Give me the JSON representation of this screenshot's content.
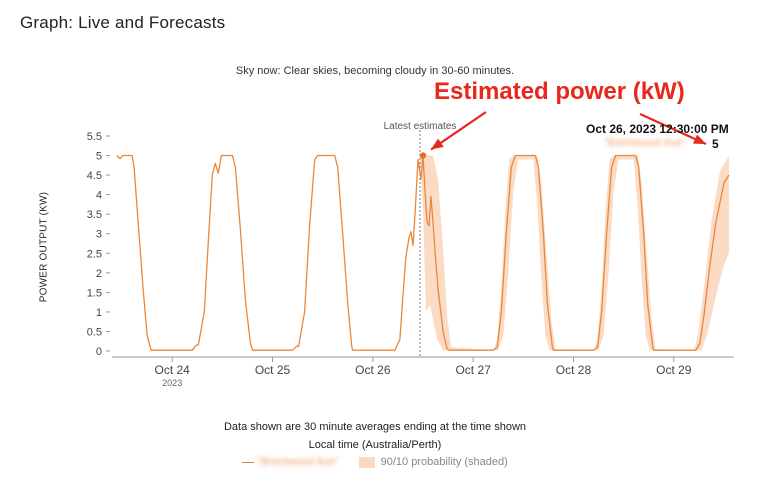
{
  "page_title": "Graph: Live and Forecasts",
  "sky_now": "Sky now: Clear skies, becoming cloudy in 30-60 minutes.",
  "annotation": {
    "label": "Estimated power (kW)",
    "color": "#e8271d"
  },
  "tooltip": {
    "date": "Oct 26, 2023 12:30:00 PM",
    "series": "\"Brentwood Ave\"",
    "value": "5"
  },
  "footnote": "Data shown are 30 minute averages ending at the time shown",
  "legend": {
    "series": "\"Brentwood Ave\"",
    "band": "90/10 probability (shaded)"
  },
  "colors": {
    "line": "#e8883c",
    "band": "#fbd9c1",
    "axis": "#999999",
    "marker": "#e8702a"
  },
  "chart_data": {
    "type": "line",
    "title": "",
    "ylabel": "POWER OUTPUT (KW)",
    "xlabel": "Local time (Australia/Perth)",
    "ylim": [
      0,
      5.5
    ],
    "yticks": [
      "0",
      "0.5",
      "1",
      "1.5",
      "2",
      "2.5",
      "3",
      "3.5",
      "4",
      "4.5",
      "5",
      "5.5"
    ],
    "xlim": [
      23.4,
      29.6
    ],
    "xticks": [
      {
        "x": 24,
        "label": "Oct 24",
        "sub": "2023"
      },
      {
        "x": 25,
        "label": "Oct 25",
        "sub": ""
      },
      {
        "x": 26,
        "label": "Oct 26",
        "sub": ""
      },
      {
        "x": 27,
        "label": "Oct 27",
        "sub": ""
      },
      {
        "x": 28,
        "label": "Oct 28",
        "sub": ""
      },
      {
        "x": 29,
        "label": "Oct 29",
        "sub": ""
      }
    ],
    "latest_marker": {
      "x": 26.47,
      "label": "Latest estimates"
    },
    "highlight_point": {
      "x": 26.5,
      "y": 5.0
    },
    "grid": false,
    "legend_position": "bottom",
    "series": [
      {
        "kind": "line",
        "points": [
          [
            23.45,
            5.0
          ],
          [
            23.48,
            4.92
          ],
          [
            23.51,
            5.0
          ],
          [
            23.6,
            5.0
          ],
          [
            23.62,
            4.7
          ],
          [
            23.66,
            3.3
          ],
          [
            23.71,
            1.6
          ],
          [
            23.75,
            0.4
          ],
          [
            23.79,
            0.02
          ],
          [
            24.2,
            0.02
          ],
          [
            24.24,
            0.15
          ],
          [
            24.26,
            0.15
          ],
          [
            24.32,
            1.0
          ],
          [
            24.36,
            2.8
          ],
          [
            24.4,
            4.5
          ],
          [
            24.43,
            4.8
          ],
          [
            24.46,
            4.55
          ],
          [
            24.49,
            5.0
          ],
          [
            24.6,
            5.0
          ],
          [
            24.63,
            4.7
          ],
          [
            24.68,
            3.1
          ],
          [
            24.73,
            1.3
          ],
          [
            24.78,
            0.2
          ],
          [
            24.8,
            0.02
          ],
          [
            25.2,
            0.02
          ],
          [
            25.24,
            0.12
          ],
          [
            25.26,
            0.12
          ],
          [
            25.32,
            1.0
          ],
          [
            25.37,
            3.2
          ],
          [
            25.42,
            4.9
          ],
          [
            25.45,
            5.0
          ],
          [
            25.62,
            5.0
          ],
          [
            25.65,
            4.7
          ],
          [
            25.7,
            3.0
          ],
          [
            25.75,
            1.2
          ],
          [
            25.79,
            0.1
          ],
          [
            25.8,
            0.02
          ],
          [
            26.22,
            0.02
          ],
          [
            26.27,
            0.3
          ],
          [
            26.3,
            1.4
          ],
          [
            26.33,
            2.4
          ],
          [
            26.36,
            2.9
          ],
          [
            26.38,
            3.05
          ],
          [
            26.4,
            2.7
          ],
          [
            26.42,
            3.5
          ],
          [
            26.45,
            4.9
          ],
          [
            26.48,
            4.4
          ],
          [
            26.5,
            5.0
          ],
          [
            26.52,
            4.1
          ],
          [
            26.54,
            3.3
          ],
          [
            26.56,
            3.2
          ],
          [
            26.58,
            3.95
          ],
          [
            26.6,
            3.3
          ],
          [
            26.62,
            2.55
          ],
          [
            26.65,
            1.6
          ],
          [
            26.7,
            0.5
          ],
          [
            26.74,
            0.05
          ],
          [
            26.76,
            0.02
          ],
          [
            27.2,
            0.02
          ],
          [
            27.24,
            0.1
          ],
          [
            27.28,
            1.0
          ],
          [
            27.33,
            3.0
          ],
          [
            27.38,
            4.7
          ],
          [
            27.42,
            5.0
          ],
          [
            27.62,
            5.0
          ],
          [
            27.65,
            4.7
          ],
          [
            27.7,
            3.0
          ],
          [
            27.74,
            1.2
          ],
          [
            27.79,
            0.1
          ],
          [
            27.8,
            0.02
          ],
          [
            28.2,
            0.02
          ],
          [
            28.24,
            0.1
          ],
          [
            28.28,
            1.0
          ],
          [
            28.33,
            3.0
          ],
          [
            28.38,
            4.7
          ],
          [
            28.42,
            5.0
          ],
          [
            28.62,
            5.0
          ],
          [
            28.65,
            4.7
          ],
          [
            28.7,
            3.0
          ],
          [
            28.74,
            1.2
          ],
          [
            28.79,
            0.1
          ],
          [
            28.8,
            0.02
          ],
          [
            29.22,
            0.02
          ],
          [
            29.26,
            0.2
          ],
          [
            29.3,
            0.9
          ],
          [
            29.35,
            2.0
          ],
          [
            29.42,
            3.3
          ],
          [
            29.5,
            4.3
          ],
          [
            29.55,
            4.5
          ]
        ]
      },
      {
        "kind": "band",
        "upper": [
          [
            26.47,
            5.0
          ],
          [
            26.5,
            5.1
          ],
          [
            26.55,
            5.0
          ],
          [
            26.6,
            5.0
          ],
          [
            26.65,
            4.4
          ],
          [
            26.7,
            2.6
          ],
          [
            26.74,
            0.9
          ],
          [
            26.78,
            0.1
          ],
          [
            27.2,
            0.02
          ],
          [
            27.24,
            0.3
          ],
          [
            27.28,
            1.6
          ],
          [
            27.32,
            3.6
          ],
          [
            27.36,
            4.9
          ],
          [
            27.4,
            5.0
          ],
          [
            27.64,
            5.0
          ],
          [
            27.68,
            4.3
          ],
          [
            27.73,
            2.5
          ],
          [
            27.78,
            0.8
          ],
          [
            27.82,
            0.05
          ],
          [
            28.2,
            0.02
          ],
          [
            28.24,
            0.3
          ],
          [
            28.28,
            1.6
          ],
          [
            28.32,
            3.6
          ],
          [
            28.36,
            4.9
          ],
          [
            28.4,
            5.0
          ],
          [
            28.64,
            5.0
          ],
          [
            28.68,
            4.3
          ],
          [
            28.73,
            2.5
          ],
          [
            28.78,
            0.8
          ],
          [
            28.82,
            0.05
          ],
          [
            29.2,
            0.02
          ],
          [
            29.24,
            0.4
          ],
          [
            29.3,
            1.6
          ],
          [
            29.38,
            3.4
          ],
          [
            29.46,
            4.6
          ],
          [
            29.55,
            5.0
          ]
        ],
        "lower": [
          [
            26.47,
            4.9
          ],
          [
            26.5,
            3.6
          ],
          [
            26.53,
            1.0
          ],
          [
            26.57,
            1.2
          ],
          [
            26.6,
            0.8
          ],
          [
            26.64,
            0.3
          ],
          [
            26.7,
            0.02
          ],
          [
            27.25,
            0.02
          ],
          [
            27.3,
            0.4
          ],
          [
            27.35,
            2.0
          ],
          [
            27.4,
            4.1
          ],
          [
            27.45,
            4.9
          ],
          [
            27.6,
            4.9
          ],
          [
            27.64,
            3.7
          ],
          [
            27.68,
            1.8
          ],
          [
            27.72,
            0.4
          ],
          [
            27.76,
            0.02
          ],
          [
            28.25,
            0.02
          ],
          [
            28.3,
            0.4
          ],
          [
            28.35,
            2.0
          ],
          [
            28.4,
            4.1
          ],
          [
            28.45,
            4.9
          ],
          [
            28.6,
            4.9
          ],
          [
            28.64,
            3.7
          ],
          [
            28.68,
            1.8
          ],
          [
            28.72,
            0.4
          ],
          [
            28.76,
            0.02
          ],
          [
            29.28,
            0.02
          ],
          [
            29.34,
            0.5
          ],
          [
            29.42,
            1.4
          ],
          [
            29.5,
            2.2
          ],
          [
            29.55,
            2.5
          ]
        ]
      }
    ]
  }
}
